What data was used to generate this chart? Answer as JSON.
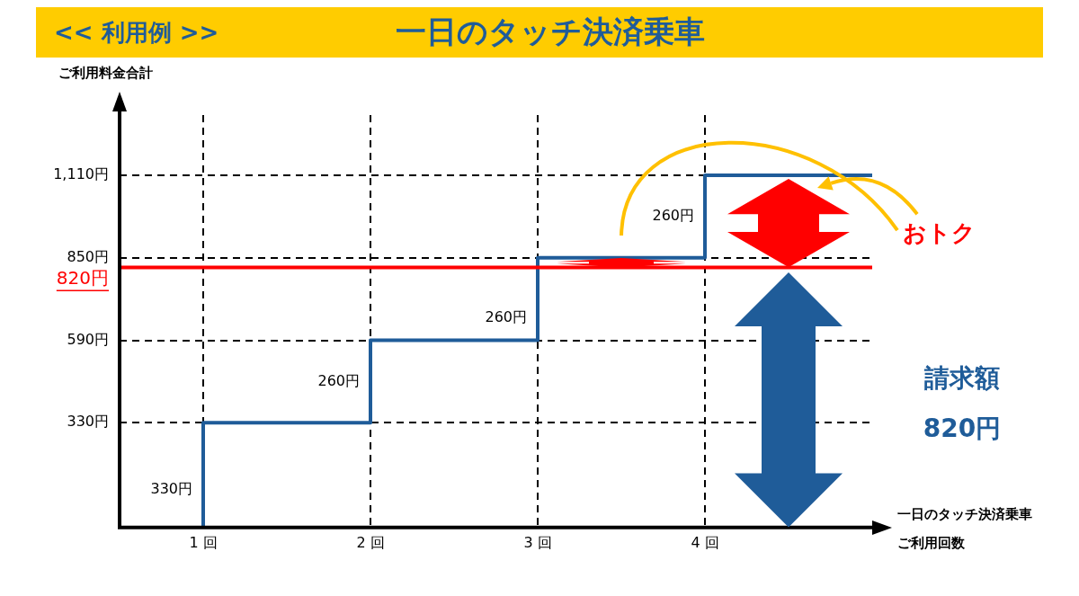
{
  "chart_data": {
    "type": "line",
    "title": "一日のタッチ決済乗車",
    "subtitle": "<< 利用例 >>",
    "ylabel": "ご利用料金合計",
    "xlabel": "一日のタッチ決済乗車ご利用回数",
    "x": [
      1,
      1,
      2,
      2,
      3,
      3,
      4,
      4,
      5
    ],
    "series": [
      {
        "color": "#1f5c99",
        "values": [
          0,
          330,
          330,
          590,
          590,
          850,
          850,
          1110,
          1110
        ]
      }
    ],
    "xlim": [
      0.5,
      5
    ],
    "xticks": [
      {
        "value": 1,
        "label": "1 回"
      },
      {
        "value": 2,
        "label": "2 回"
      },
      {
        "value": 3,
        "label": "3 回"
      },
      {
        "value": 4,
        "label": "4 回"
      }
    ],
    "ylim": [
      0,
      1300
    ],
    "yticks": [
      {
        "value": 330,
        "label": "330円"
      },
      {
        "value": 590,
        "label": "590円"
      },
      {
        "value": 850,
        "label": "850円"
      },
      {
        "value": 1110,
        "label": "1,110円"
      }
    ],
    "grid": true,
    "marker": "none",
    "line_style": "solid",
    "legend": false,
    "ref_lines": [
      {
        "axis": "y",
        "value": 820,
        "label": "820円",
        "color": "#ff0000"
      }
    ],
    "annotations": [
      {
        "text": "330円",
        "x": 1,
        "y": 120
      },
      {
        "text": "260円",
        "x": 2,
        "y": 460
      },
      {
        "text": "260円",
        "x": 3,
        "y": 660
      },
      {
        "text": "260円",
        "x": 4,
        "y": 980
      },
      "おトク",
      "請求額",
      "820円"
    ]
  }
}
